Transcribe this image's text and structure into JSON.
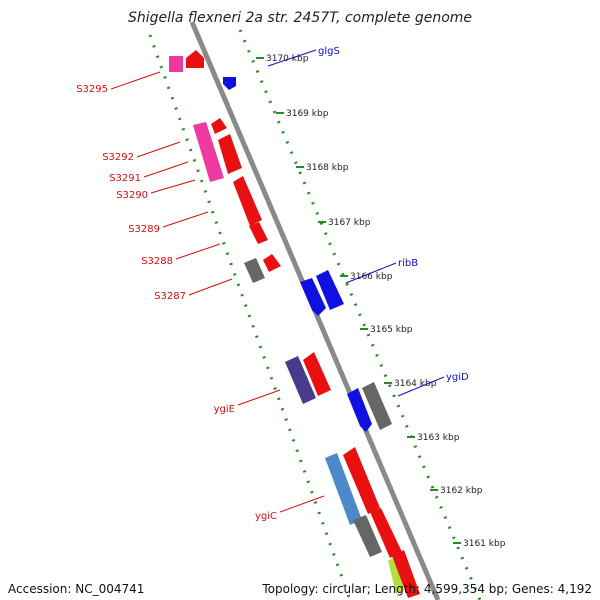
{
  "title": "Shigella flexneri 2a str. 2457T, complete genome",
  "footer": {
    "accession": "Accession: NC_004741",
    "stats": "Topology: circular; Length: 4,599,354 bp; Genes: 4,192"
  },
  "colors": {
    "backbone": "#8a8a8a",
    "ticks": "#2a8a2a",
    "left_label": "#d01010",
    "right_label": "#1010c0",
    "kbp_text": "#222222"
  },
  "kbp_ticks": [
    {
      "label": "3170 kbp"
    },
    {
      "label": "3169 kbp"
    },
    {
      "label": "3168 kbp"
    },
    {
      "label": "3167 kbp"
    },
    {
      "label": "3166 kbp"
    },
    {
      "label": "3165 kbp"
    },
    {
      "label": "3164 kbp"
    },
    {
      "label": "3163 kbp"
    },
    {
      "label": "3162 kbp"
    },
    {
      "label": "3161 kbp"
    }
  ],
  "left_genes": [
    {
      "label": "S3295"
    },
    {
      "label": "S3292"
    },
    {
      "label": "S3291"
    },
    {
      "label": "S3290"
    },
    {
      "label": "S3289"
    },
    {
      "label": "S3288"
    },
    {
      "label": "S3287"
    },
    {
      "label": "ygiE"
    },
    {
      "label": "ygiC"
    }
  ],
  "right_genes": [
    {
      "label": "glgS"
    },
    {
      "label": "ribB"
    },
    {
      "label": "ygiD"
    }
  ]
}
